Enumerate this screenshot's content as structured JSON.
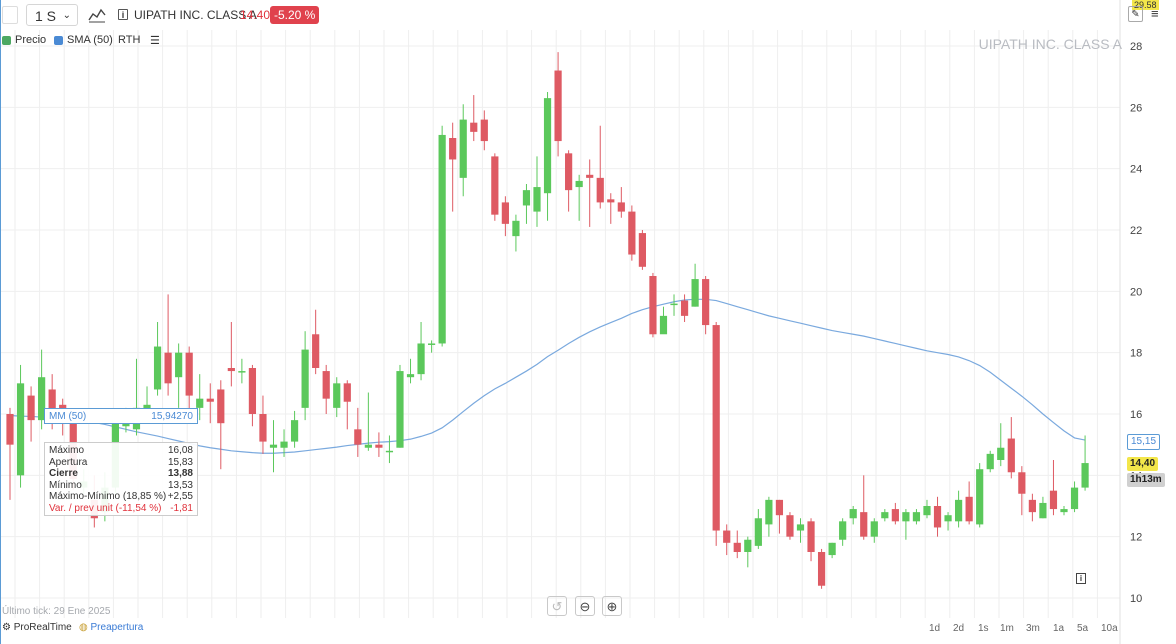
{
  "toolbar": {
    "interval": "1 S",
    "instrument": "UIPATH INC. CLASS A",
    "price": "14.40",
    "change": "-5.20 %",
    "top_scale_value": "29.58"
  },
  "legend": {
    "price_label": "Precio",
    "sma_label": "SMA (50)",
    "rth_label": "RTH",
    "price_color": "#4ca862",
    "sma_color": "#4a8ad4"
  },
  "watermark": "UIPATH INC. CLASS A",
  "indicator_box": {
    "label": "MM (50)",
    "value": "15,94270"
  },
  "tooltip": {
    "rows": [
      {
        "label": "Máximo",
        "value": "16,08"
      },
      {
        "label": "Apertura",
        "value": "15,83"
      },
      {
        "label": "Cierre",
        "value": "13,88"
      },
      {
        "label": "Mínimo",
        "value": "13,53"
      },
      {
        "label": "Máximo-Mínimo (18,85 %)",
        "value": "+2,55"
      },
      {
        "label": "Var. / prev unit (-11,54 %)",
        "value": "-1,81"
      }
    ]
  },
  "tags": {
    "sma": "15,15",
    "price": "14,40",
    "countdown": "1h13m"
  },
  "footer": {
    "last_tick": "Último tick: 29 Ene 2025",
    "brand": "ProRealTime",
    "session": "Preapertura",
    "timeframes": [
      "1d",
      "2d",
      "1s",
      "1m",
      "3m",
      "1a",
      "5a",
      "10a"
    ]
  },
  "chart_data": {
    "type": "candlestick",
    "colors": {
      "up": "#5bc85b",
      "down": "#de5a63",
      "sma": "#7aa9de"
    },
    "ylim": [
      10,
      29
    ],
    "yticks": [
      10,
      12,
      14,
      16,
      18,
      20,
      22,
      24,
      26,
      28
    ],
    "candles": [
      [
        16.0,
        15.0,
        16.2,
        13.2
      ],
      [
        14.0,
        17.0,
        17.6,
        13.6
      ],
      [
        16.6,
        15.8,
        16.9,
        15.1
      ],
      [
        15.8,
        17.2,
        18.1,
        15.5
      ],
      [
        16.8,
        16.0,
        17.3,
        15.5
      ],
      [
        16.3,
        15.8,
        16.5,
        15.3
      ],
      [
        15.83,
        13.88,
        16.08,
        13.53
      ],
      [
        13.6,
        13.8,
        14.2,
        13.4
      ],
      [
        13.2,
        12.6,
        14.0,
        12.3
      ],
      [
        12.8,
        13.6,
        14.1,
        12.5
      ],
      [
        13.6,
        15.8,
        16.1,
        13.4
      ],
      [
        15.6,
        15.9,
        16.2,
        15.4
      ],
      [
        15.5,
        16.2,
        17.8,
        15.3
      ],
      [
        16.0,
        16.3,
        16.9,
        15.7
      ],
      [
        16.8,
        18.2,
        19.0,
        16.6
      ],
      [
        18.0,
        17.0,
        19.9,
        16.6
      ],
      [
        17.2,
        18.0,
        18.3,
        16.2
      ],
      [
        18.0,
        16.6,
        18.2,
        16.0
      ],
      [
        16.2,
        16.5,
        17.3,
        15.8
      ],
      [
        16.5,
        16.4,
        17.0,
        15.7
      ],
      [
        16.8,
        15.7,
        17.1,
        14.2
      ],
      [
        17.5,
        17.4,
        19.0,
        16.9
      ],
      [
        17.4,
        17.4,
        17.8,
        17.0
      ],
      [
        17.5,
        16.0,
        17.6,
        15.6
      ],
      [
        16.0,
        15.1,
        16.6,
        14.7
      ],
      [
        14.9,
        15.0,
        15.8,
        14.1
      ],
      [
        14.9,
        15.1,
        15.5,
        14.6
      ],
      [
        15.1,
        15.8,
        16.1,
        14.9
      ],
      [
        16.2,
        18.1,
        18.7,
        15.8
      ],
      [
        18.6,
        17.5,
        19.4,
        17.3
      ],
      [
        17.4,
        16.5,
        17.6,
        16.0
      ],
      [
        16.2,
        17.0,
        17.2,
        15.9
      ],
      [
        17.0,
        16.4,
        17.1,
        15.5
      ],
      [
        15.5,
        15.0,
        16.2,
        14.6
      ],
      [
        14.9,
        15.0,
        16.7,
        14.8
      ],
      [
        15.0,
        14.9,
        15.4,
        14.6
      ],
      [
        14.8,
        14.8,
        15.3,
        14.4
      ],
      [
        14.9,
        17.4,
        17.6,
        14.9
      ],
      [
        17.2,
        17.3,
        17.8,
        17.0
      ],
      [
        17.3,
        18.3,
        19.0,
        17.1
      ],
      [
        18.3,
        18.3,
        18.4,
        18.0
      ],
      [
        18.3,
        25.1,
        25.4,
        18.2
      ],
      [
        25.0,
        24.3,
        25.5,
        22.6
      ],
      [
        23.7,
        25.6,
        26.1,
        23.1
      ],
      [
        25.5,
        25.2,
        26.4,
        24.9
      ],
      [
        25.6,
        24.9,
        25.9,
        24.6
      ],
      [
        24.4,
        22.5,
        24.5,
        22.3
      ],
      [
        22.9,
        22.2,
        23.1,
        21.8
      ],
      [
        21.8,
        22.3,
        22.5,
        21.3
      ],
      [
        22.8,
        23.3,
        23.5,
        22.2
      ],
      [
        22.6,
        23.4,
        24.4,
        22.1
      ],
      [
        23.2,
        26.3,
        26.5,
        22.3
      ],
      [
        27.2,
        24.9,
        27.8,
        24.4
      ],
      [
        24.5,
        23.3,
        24.6,
        22.6
      ],
      [
        23.4,
        23.6,
        23.8,
        22.3
      ],
      [
        23.8,
        23.7,
        24.3,
        22.1
      ],
      [
        23.7,
        22.9,
        25.4,
        22.7
      ],
      [
        23.0,
        22.9,
        23.2,
        22.2
      ],
      [
        22.9,
        22.6,
        23.4,
        22.4
      ],
      [
        22.6,
        21.2,
        22.8,
        21.0
      ],
      [
        21.9,
        20.8,
        22.0,
        20.7
      ],
      [
        20.5,
        18.6,
        20.6,
        18.5
      ],
      [
        18.6,
        19.2,
        19.5,
        18.7
      ],
      [
        19.6,
        19.6,
        19.9,
        19.2
      ],
      [
        19.7,
        19.2,
        19.9,
        19.0
      ],
      [
        19.5,
        20.4,
        20.9,
        19.5
      ],
      [
        20.4,
        18.9,
        20.5,
        18.6
      ],
      [
        18.9,
        12.2,
        19.0,
        11.7
      ],
      [
        12.2,
        11.8,
        12.4,
        11.4
      ],
      [
        11.8,
        11.5,
        12.2,
        11.3
      ],
      [
        11.5,
        11.9,
        12.0,
        11.0
      ],
      [
        11.7,
        12.6,
        12.9,
        11.6
      ],
      [
        12.4,
        13.2,
        13.3,
        12.0
      ],
      [
        13.2,
        12.7,
        13.2,
        12.1
      ],
      [
        12.7,
        12.0,
        12.8,
        11.9
      ],
      [
        12.2,
        12.4,
        12.6,
        11.8
      ],
      [
        12.5,
        11.5,
        12.6,
        11.2
      ],
      [
        11.5,
        10.4,
        11.6,
        10.3
      ],
      [
        11.4,
        11.8,
        11.8,
        11.3
      ],
      [
        11.9,
        12.5,
        12.6,
        11.7
      ],
      [
        12.6,
        12.9,
        13.0,
        12.4
      ],
      [
        12.8,
        12.0,
        14.0,
        11.9
      ],
      [
        12.0,
        12.5,
        12.6,
        11.8
      ],
      [
        12.6,
        12.8,
        12.9,
        12.5
      ],
      [
        12.9,
        12.5,
        13.1,
        12.4
      ],
      [
        12.5,
        12.8,
        12.9,
        11.9
      ],
      [
        12.5,
        12.8,
        12.9,
        12.4
      ],
      [
        12.7,
        13.0,
        13.2,
        12.6
      ],
      [
        13.0,
        12.3,
        13.3,
        12.0
      ],
      [
        12.5,
        12.7,
        12.8,
        12.2
      ],
      [
        12.5,
        13.2,
        13.5,
        12.3
      ],
      [
        13.3,
        12.5,
        13.8,
        12.4
      ],
      [
        12.4,
        14.2,
        14.4,
        12.3
      ],
      [
        14.2,
        14.7,
        14.8,
        14.1
      ],
      [
        14.5,
        14.9,
        15.7,
        14.3
      ],
      [
        15.2,
        14.1,
        15.9,
        13.9
      ],
      [
        14.1,
        13.4,
        14.3,
        12.7
      ],
      [
        13.2,
        12.8,
        13.4,
        12.5
      ],
      [
        12.6,
        13.1,
        13.3,
        12.6
      ],
      [
        13.5,
        12.9,
        14.5,
        12.7
      ],
      [
        12.8,
        12.9,
        13.0,
        12.7
      ],
      [
        12.9,
        13.6,
        13.8,
        12.8
      ],
      [
        13.6,
        14.4,
        15.3,
        13.5
      ]
    ],
    "sma": [
      15.95,
      15.93,
      15.92,
      15.9,
      15.88,
      15.85,
      15.83,
      15.79,
      15.72,
      15.66,
      15.58,
      15.5,
      15.42,
      15.35,
      15.28,
      15.2,
      15.12,
      15.04,
      14.96,
      14.9,
      14.85,
      14.8,
      14.77,
      14.74,
      14.72,
      14.72,
      14.74,
      14.76,
      14.8,
      14.84,
      14.88,
      14.92,
      14.97,
      15.01,
      15.05,
      15.08,
      15.1,
      15.13,
      15.18,
      15.27,
      15.38,
      15.55,
      15.8,
      16.08,
      16.35,
      16.6,
      16.82,
      17.0,
      17.2,
      17.4,
      17.62,
      17.87,
      18.08,
      18.3,
      18.5,
      18.68,
      18.84,
      18.98,
      19.12,
      19.28,
      19.4,
      19.5,
      19.58,
      19.66,
      19.72,
      19.74,
      19.74,
      19.7,
      19.6,
      19.5,
      19.4,
      19.3,
      19.2,
      19.12,
      19.04,
      18.96,
      18.88,
      18.8,
      18.72,
      18.66,
      18.6,
      18.54,
      18.46,
      18.38,
      18.3,
      18.22,
      18.14,
      18.06,
      18.0,
      17.94,
      17.86,
      17.74,
      17.58,
      17.36,
      17.1,
      16.84,
      16.58,
      16.3,
      16.0,
      15.72,
      15.45,
      15.22,
      15.15
    ]
  }
}
